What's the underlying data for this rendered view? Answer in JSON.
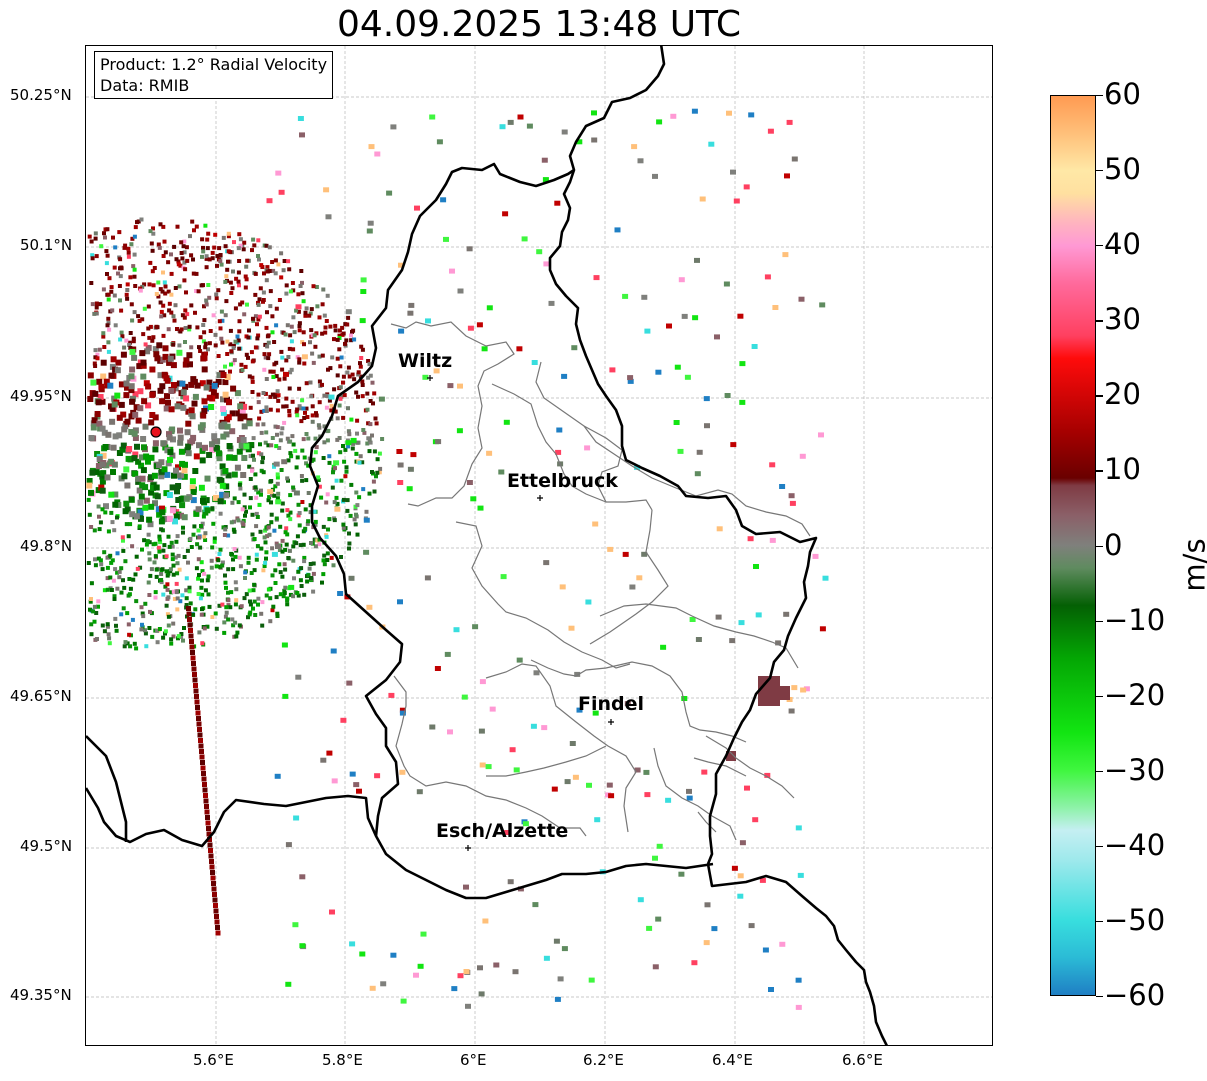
{
  "title": "04.09.2025 13:48 UTC",
  "info_box": {
    "product_line": "Product: 1.2° Radial Velocity",
    "data_line": "Data: RMIB"
  },
  "map": {
    "lat_ticks": [
      "50.25°N",
      "50.1°N",
      "49.95°N",
      "49.8°N",
      "49.65°N",
      "49.5°N",
      "49.35°N"
    ],
    "lon_ticks": [
      "5.6°E",
      "5.8°E",
      "6°E",
      "6.2°E",
      "6.4°E",
      "6.6°E"
    ],
    "cities": [
      {
        "name": "Wiltz"
      },
      {
        "name": "Ettelbruck"
      },
      {
        "name": "Findel"
      },
      {
        "name": "Esch/Alzette"
      }
    ],
    "radar_site_color": "#e8141e"
  },
  "colorbar": {
    "unit": "m/s",
    "min": -60,
    "max": 60,
    "ticks": [
      "60",
      "50",
      "40",
      "30",
      "20",
      "10",
      "0",
      "−10",
      "−20",
      "−30",
      "−40",
      "−50",
      "−60"
    ],
    "stops": [
      {
        "v": -60,
        "c": "#1f7fc4"
      },
      {
        "v": -55,
        "c": "#2bbbd6"
      },
      {
        "v": -50,
        "c": "#38dede"
      },
      {
        "v": -42,
        "c": "#9ee9ec"
      },
      {
        "v": -38,
        "c": "#c5eff2"
      },
      {
        "v": -35,
        "c": "#8ef2a9"
      },
      {
        "v": -30,
        "c": "#3ff63f"
      },
      {
        "v": -25,
        "c": "#12e512"
      },
      {
        "v": -15,
        "c": "#04a604"
      },
      {
        "v": -8,
        "c": "#046004"
      },
      {
        "v": -3,
        "c": "#5f8b5f"
      },
      {
        "v": 0,
        "c": "#7f807c"
      },
      {
        "v": 4,
        "c": "#8b6068"
      },
      {
        "v": 8,
        "c": "#7f3b44"
      },
      {
        "v": 9,
        "c": "#6a0000"
      },
      {
        "v": 15,
        "c": "#a40000"
      },
      {
        "v": 25,
        "c": "#ff0b0b"
      },
      {
        "v": 28,
        "c": "#ff4060"
      },
      {
        "v": 35,
        "c": "#ff6a9c"
      },
      {
        "v": 40,
        "c": "#ff99d4"
      },
      {
        "v": 43,
        "c": "#ffb3c0"
      },
      {
        "v": 47,
        "c": "#ffe0a0"
      },
      {
        "v": 50,
        "c": "#ffe8a6"
      },
      {
        "v": 55,
        "c": "#ffc07a"
      },
      {
        "v": 60,
        "c": "#ff9a52"
      }
    ]
  }
}
